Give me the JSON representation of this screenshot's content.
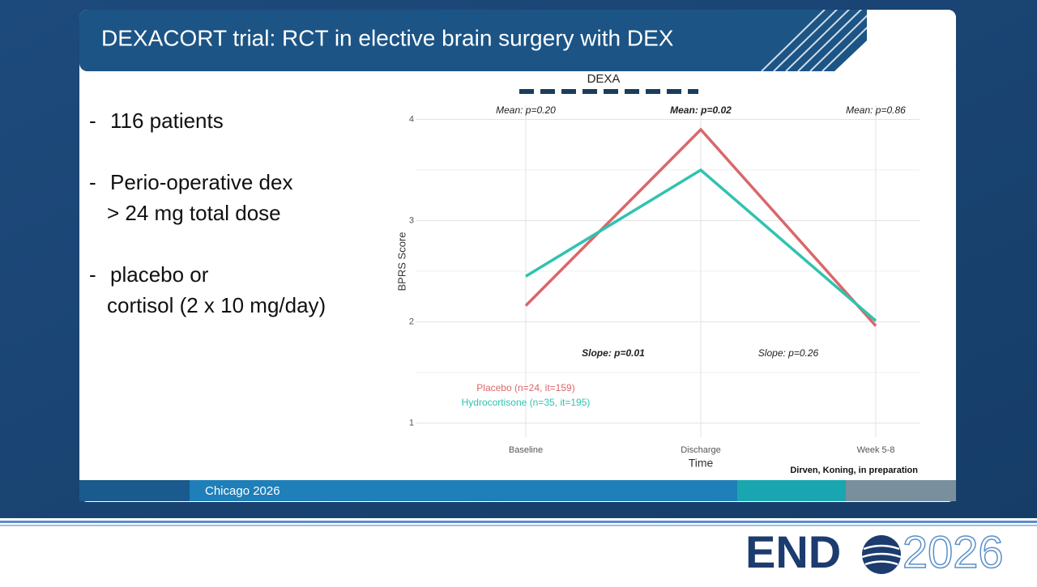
{
  "slide": {
    "title": "DEXACORT trial: RCT in elective brain surgery with DEX",
    "bullet_marker": "-",
    "bullets": [
      [
        "116 patients"
      ],
      [
        "Perio-operative dex",
        "> 24 mg total dose"
      ],
      [
        "placebo or",
        "cortisol (2 x 10 mg/day)"
      ]
    ],
    "source": "Dirven, Koning, in preparation",
    "footer": "Chicago 2026",
    "logo": {
      "left": "END",
      "right": "2026"
    }
  },
  "chart_data": {
    "type": "line",
    "period_label": "DEXA",
    "x_label": "Time",
    "y_label": "BPRS Score",
    "categories": [
      "Baseline",
      "Discharge",
      "Week 5-8"
    ],
    "series": [
      {
        "name": "Placebo (n=24, it=159)",
        "color": "#d9676a",
        "values": [
          2.16,
          3.9,
          1.96
        ]
      },
      {
        "name": "Hydrocortisone (n=35, it=195)",
        "color": "#2fc3b0",
        "values": [
          2.45,
          3.5,
          2.01
        ]
      }
    ],
    "annotations": [
      {
        "text": "Mean: p=0.20",
        "bold": false
      },
      {
        "text": "Mean: p=0.02",
        "bold": true
      },
      {
        "text": "Mean: p=0.86",
        "bold": false
      },
      {
        "text": "Slope: p=0.01",
        "bold": true
      },
      {
        "text": "Slope: p=0.26",
        "bold": false
      }
    ],
    "ylim": [
      0.86,
      4.14
    ],
    "yticks": [
      1,
      2,
      3,
      4
    ],
    "minor_yticks": [
      1.5,
      2.5,
      3.5
    ],
    "grid": true
  }
}
